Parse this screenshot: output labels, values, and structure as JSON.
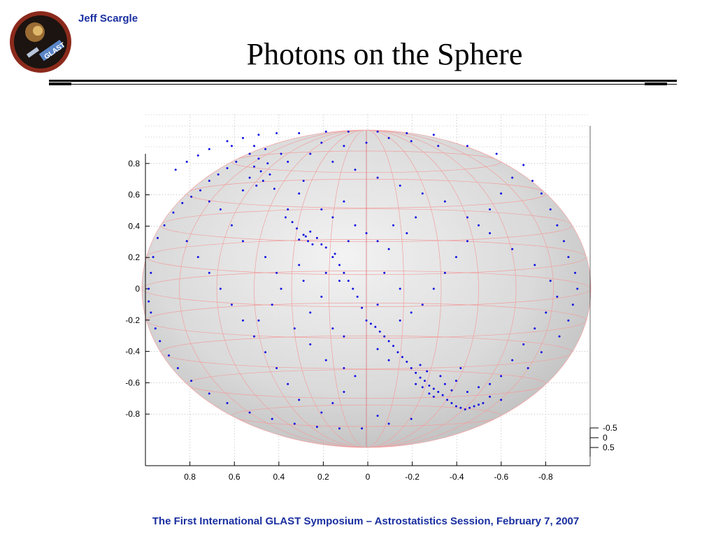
{
  "header": {
    "author": "Jeff Scargle",
    "title": "Photons on the Sphere",
    "logo_text": "GLAST"
  },
  "footer": {
    "text": "The First International GLAST Symposium – Astrostatistics Session, February 7, 2007"
  },
  "colors": {
    "accent": "#1a2fa0",
    "point": "#1010e0",
    "grid_line": "#f0a0a0",
    "sphere_fill": "#d0d0d0"
  },
  "chart_data": {
    "type": "scatter",
    "description_3d": "unit sphere with photon points on its surface",
    "xlim": [
      1,
      -1
    ],
    "ylim": [
      -1,
      1
    ],
    "zlim": [
      -0.5,
      0.5
    ],
    "x_ticks": [
      "0.8",
      "0.6",
      "0.4",
      "0.2",
      "0",
      "-0.2",
      "-0.4",
      "-0.6",
      "-0.8"
    ],
    "x_tick_values": [
      0.8,
      0.6,
      0.4,
      0.2,
      0,
      -0.2,
      -0.4,
      -0.6,
      -0.8
    ],
    "y_ticks": [
      "0.8",
      "0.6",
      "0.4",
      "0.2",
      "0",
      "-0.2",
      "-0.4",
      "-0.6",
      "-0.8"
    ],
    "y_tick_values": [
      0.8,
      0.6,
      0.4,
      0.2,
      0,
      -0.2,
      -0.4,
      -0.6,
      -0.8
    ],
    "z_ticks": [
      "-0.5",
      "0",
      "0.5"
    ],
    "z_tick_values": [
      -0.5,
      0,
      0.5
    ],
    "grid": true,
    "points": [
      [
        0.62,
        0.93
      ],
      [
        0.55,
        0.95
      ],
      [
        0.48,
        0.97
      ],
      [
        0.4,
        0.98
      ],
      [
        0.3,
        0.98
      ],
      [
        0.18,
        0.99
      ],
      [
        0.08,
        0.99
      ],
      [
        -0.05,
        0.99
      ],
      [
        -0.18,
        0.98
      ],
      [
        -0.3,
        0.97
      ],
      [
        0.7,
        0.88
      ],
      [
        0.75,
        0.84
      ],
      [
        0.8,
        0.8
      ],
      [
        0.85,
        0.75
      ],
      [
        0.6,
        0.9
      ],
      [
        0.5,
        0.9
      ],
      [
        0.45,
        0.88
      ],
      [
        0.52,
        0.85
      ],
      [
        0.48,
        0.82
      ],
      [
        0.44,
        0.79
      ],
      [
        0.5,
        0.77
      ],
      [
        0.47,
        0.74
      ],
      [
        0.43,
        0.72
      ],
      [
        0.52,
        0.7
      ],
      [
        0.46,
        0.68
      ],
      [
        0.49,
        0.65
      ],
      [
        0.41,
        0.63
      ],
      [
        0.55,
        0.62
      ],
      [
        0.38,
        0.85
      ],
      [
        0.35,
        0.8
      ],
      [
        0.58,
        0.8
      ],
      [
        0.62,
        0.76
      ],
      [
        0.66,
        0.72
      ],
      [
        0.7,
        0.68
      ],
      [
        0.74,
        0.62
      ],
      [
        0.78,
        0.58
      ],
      [
        0.82,
        0.54
      ],
      [
        0.86,
        0.48
      ],
      [
        0.9,
        0.4
      ],
      [
        0.93,
        0.32
      ],
      [
        0.95,
        0.2
      ],
      [
        0.96,
        0.1
      ],
      [
        0.97,
        0.0
      ],
      [
        0.97,
        -0.08
      ],
      [
        0.96,
        -0.15
      ],
      [
        0.94,
        -0.25
      ],
      [
        0.92,
        -0.33
      ],
      [
        0.88,
        -0.42
      ],
      [
        0.84,
        -0.5
      ],
      [
        0.78,
        -0.58
      ],
      [
        0.7,
        -0.66
      ],
      [
        0.62,
        -0.72
      ],
      [
        0.52,
        -0.78
      ],
      [
        0.42,
        -0.82
      ],
      [
        0.32,
        -0.85
      ],
      [
        0.22,
        -0.87
      ],
      [
        0.12,
        -0.88
      ],
      [
        0.02,
        -0.88
      ],
      [
        0.28,
        0.68
      ],
      [
        0.3,
        0.6
      ],
      [
        0.35,
        0.5
      ],
      [
        0.36,
        0.45
      ],
      [
        0.33,
        0.42
      ],
      [
        0.31,
        0.38
      ],
      [
        0.28,
        0.34
      ],
      [
        0.26,
        0.3
      ],
      [
        0.24,
        0.28
      ],
      [
        0.27,
        0.33
      ],
      [
        0.3,
        0.31
      ],
      [
        0.25,
        0.36
      ],
      [
        0.22,
        0.32
      ],
      [
        0.2,
        0.28
      ],
      [
        0.18,
        0.26
      ],
      [
        0.15,
        0.2
      ],
      [
        0.12,
        0.15
      ],
      [
        0.1,
        0.1
      ],
      [
        0.08,
        0.05
      ],
      [
        0.06,
        0.0
      ],
      [
        0.04,
        -0.05
      ],
      [
        0.02,
        -0.12
      ],
      [
        0.0,
        -0.2
      ],
      [
        -0.02,
        -0.22
      ],
      [
        -0.04,
        -0.24
      ],
      [
        -0.06,
        -0.27
      ],
      [
        -0.08,
        -0.3
      ],
      [
        -0.1,
        -0.33
      ],
      [
        -0.12,
        -0.36
      ],
      [
        -0.14,
        -0.4
      ],
      [
        -0.16,
        -0.43
      ],
      [
        -0.18,
        -0.46
      ],
      [
        -0.2,
        -0.5
      ],
      [
        -0.22,
        -0.53
      ],
      [
        -0.24,
        -0.56
      ],
      [
        -0.26,
        -0.58
      ],
      [
        -0.28,
        -0.61
      ],
      [
        -0.3,
        -0.63
      ],
      [
        -0.32,
        -0.65
      ],
      [
        -0.34,
        -0.67
      ],
      [
        -0.36,
        -0.7
      ],
      [
        -0.38,
        -0.72
      ],
      [
        -0.4,
        -0.74
      ],
      [
        -0.42,
        -0.75
      ],
      [
        -0.44,
        -0.76
      ],
      [
        -0.46,
        -0.75
      ],
      [
        -0.48,
        -0.74
      ],
      [
        -0.5,
        -0.73
      ],
      [
        -0.52,
        -0.72
      ],
      [
        -0.3,
        -0.68
      ],
      [
        -0.28,
        -0.66
      ],
      [
        -0.25,
        -0.62
      ],
      [
        -0.22,
        -0.6
      ],
      [
        -0.35,
        -0.6
      ],
      [
        -0.38,
        -0.64
      ],
      [
        -0.33,
        -0.55
      ],
      [
        -0.27,
        -0.52
      ],
      [
        -0.24,
        -0.48
      ],
      [
        -0.4,
        -0.58
      ],
      [
        -0.45,
        -0.65
      ],
      [
        -0.5,
        -0.62
      ],
      [
        -0.42,
        -0.5
      ],
      [
        -0.1,
        -0.45
      ],
      [
        -0.05,
        -0.38
      ],
      [
        0.1,
        -0.3
      ],
      [
        0.15,
        -0.25
      ],
      [
        -0.15,
        -0.2
      ],
      [
        -0.2,
        -0.15
      ],
      [
        -0.25,
        -0.1
      ],
      [
        -0.3,
        0.0
      ],
      [
        -0.35,
        0.1
      ],
      [
        -0.4,
        0.2
      ],
      [
        -0.45,
        0.3
      ],
      [
        -0.5,
        0.4
      ],
      [
        -0.55,
        0.5
      ],
      [
        -0.6,
        0.6
      ],
      [
        -0.65,
        0.7
      ],
      [
        -0.7,
        0.78
      ],
      [
        -0.58,
        0.85
      ],
      [
        -0.45,
        0.9
      ],
      [
        -0.32,
        0.9
      ],
      [
        -0.2,
        0.93
      ],
      [
        -0.1,
        0.95
      ],
      [
        0.0,
        0.92
      ],
      [
        0.1,
        0.9
      ],
      [
        0.2,
        0.92
      ],
      [
        0.25,
        0.85
      ],
      [
        0.15,
        0.8
      ],
      [
        0.05,
        0.75
      ],
      [
        -0.05,
        0.7
      ],
      [
        -0.15,
        0.65
      ],
      [
        -0.25,
        0.6
      ],
      [
        -0.35,
        0.55
      ],
      [
        -0.45,
        0.45
      ],
      [
        -0.55,
        0.35
      ],
      [
        -0.65,
        0.25
      ],
      [
        -0.75,
        0.15
      ],
      [
        -0.82,
        0.05
      ],
      [
        -0.85,
        -0.05
      ],
      [
        -0.8,
        -0.15
      ],
      [
        -0.75,
        -0.25
      ],
      [
        -0.7,
        -0.35
      ],
      [
        -0.65,
        -0.45
      ],
      [
        -0.6,
        -0.55
      ],
      [
        -0.55,
        -0.6
      ],
      [
        -0.72,
        -0.5
      ],
      [
        -0.78,
        -0.4
      ],
      [
        -0.86,
        -0.3
      ],
      [
        -0.9,
        -0.2
      ],
      [
        -0.92,
        -0.1
      ],
      [
        -0.94,
        0.0
      ],
      [
        -0.93,
        0.1
      ],
      [
        -0.9,
        0.2
      ],
      [
        -0.88,
        0.3
      ],
      [
        -0.85,
        0.4
      ],
      [
        -0.82,
        0.5
      ],
      [
        -0.78,
        0.6
      ],
      [
        -0.74,
        0.68
      ],
      [
        0.8,
        0.3
      ],
      [
        0.75,
        0.2
      ],
      [
        0.7,
        0.1
      ],
      [
        0.65,
        0.0
      ],
      [
        0.6,
        -0.1
      ],
      [
        0.55,
        -0.2
      ],
      [
        0.5,
        -0.3
      ],
      [
        0.45,
        -0.4
      ],
      [
        0.4,
        -0.5
      ],
      [
        0.35,
        -0.6
      ],
      [
        0.3,
        -0.7
      ],
      [
        0.6,
        0.4
      ],
      [
        0.65,
        0.5
      ],
      [
        0.7,
        0.55
      ],
      [
        0.55,
        0.3
      ],
      [
        0.45,
        0.2
      ],
      [
        0.4,
        0.1
      ],
      [
        0.38,
        0.0
      ],
      [
        0.42,
        -0.1
      ],
      [
        0.48,
        -0.2
      ],
      [
        0.2,
        0.5
      ],
      [
        0.15,
        0.45
      ],
      [
        0.1,
        0.55
      ],
      [
        0.05,
        0.4
      ],
      [
        0.0,
        0.35
      ],
      [
        -0.05,
        0.3
      ],
      [
        -0.1,
        0.25
      ],
      [
        -0.12,
        0.4
      ],
      [
        -0.18,
        0.35
      ],
      [
        -0.22,
        0.45
      ],
      [
        0.18,
        0.1
      ],
      [
        0.12,
        0.05
      ],
      [
        0.2,
        -0.05
      ],
      [
        0.25,
        -0.15
      ],
      [
        0.05,
        -0.55
      ],
      [
        0.1,
        -0.65
      ],
      [
        0.15,
        -0.72
      ],
      [
        0.2,
        -0.78
      ],
      [
        -0.05,
        -0.8
      ],
      [
        -0.1,
        -0.85
      ],
      [
        -0.2,
        -0.82
      ],
      [
        -0.6,
        -0.7
      ],
      [
        -0.55,
        -0.68
      ],
      [
        0.3,
        0.15
      ],
      [
        0.28,
        0.05
      ],
      [
        0.32,
        -0.25
      ],
      [
        0.25,
        -0.35
      ],
      [
        0.18,
        -0.45
      ],
      [
        0.1,
        -0.5
      ],
      [
        -0.08,
        0.1
      ],
      [
        -0.15,
        0.0
      ],
      [
        -0.05,
        -0.1
      ],
      [
        0.08,
        0.3
      ],
      [
        0.14,
        0.22
      ]
    ]
  }
}
